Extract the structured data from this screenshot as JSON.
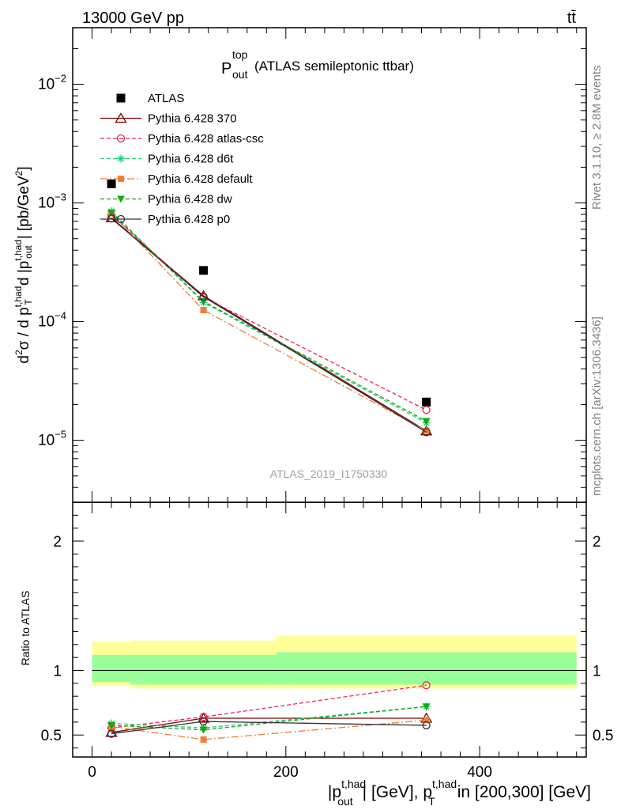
{
  "header": {
    "left": "13000 GeV pp",
    "right": "tt̄"
  },
  "side_labels": {
    "rivet": "Rivet 3.1.10, ≥ 2.8M events",
    "mcplots": "mcplots.cern.ch [arXiv:1306.3436]"
  },
  "main_title": {
    "symbol": "P",
    "sup": "top",
    "sub": "out",
    "rest": "(ATLAS semileptonic ttbar)"
  },
  "analysis_id": "ATLAS_2019_I1750330",
  "y_axis_main_label": "d²σ / d p_T^{t,had} d |p_out^{t,had}| [pb/GeV²]",
  "y_axis_ratio_label": "Ratio to ATLAS",
  "x_axis_label": "|p_out^{t,had}| [GeV], p_T^{t,had} in [200,300] [GeV]",
  "colors": {
    "atlas": "#000000",
    "p370": "#7f0000",
    "atlas_csc": "#ee2255",
    "d6t": "#22cc77",
    "default": "#f07f33",
    "dw": "#11aa11",
    "p0": "#333333",
    "band_outer": "#ffff99",
    "band_inner": "#99ff99"
  },
  "chart_data": [
    {
      "type": "line",
      "panel": "main",
      "yscale": "log",
      "xlim": [
        -20,
        510
      ],
      "ylim": [
        3e-06,
        0.03
      ],
      "x_ticks": [
        0,
        200,
        400
      ],
      "y_ticks": [
        "10^-5",
        "10^-4",
        "10^-3",
        "10^-2"
      ],
      "legend_position": "top-left",
      "x": [
        20,
        115,
        345
      ],
      "series": [
        {
          "name": "ATLAS",
          "style": "data",
          "values": [
            0.00145,
            0.00027,
            2.1e-05
          ]
        },
        {
          "name": "Pythia 6.428 370",
          "style": "solid",
          "marker": "triangle-open",
          "values": [
            0.00075,
            0.000165,
            1.2e-05
          ]
        },
        {
          "name": "Pythia 6.428 atlas-csc",
          "style": "dashed",
          "marker": "circle-open",
          "values": [
            0.00079,
            0.00016,
            1.8e-05
          ]
        },
        {
          "name": "Pythia 6.428 d6t",
          "style": "dashed",
          "marker": "asterisk",
          "values": [
            0.00085,
            0.000145,
            1.4e-05
          ]
        },
        {
          "name": "Pythia 6.428 default",
          "style": "dashdot",
          "marker": "square",
          "values": [
            0.00082,
            0.000125,
            1.2e-05
          ]
        },
        {
          "name": "Pythia 6.428 dw",
          "style": "dashed",
          "marker": "triangle-down",
          "values": [
            0.00083,
            0.000148,
            1.45e-05
          ]
        },
        {
          "name": "Pythia 6.428 p0",
          "style": "solid",
          "marker": "circle-open",
          "values": [
            0.00074,
            0.000162,
            1.17e-05
          ]
        }
      ]
    },
    {
      "type": "line",
      "panel": "ratio",
      "xlim": [
        -20,
        510
      ],
      "ylim": [
        0.33,
        2.3
      ],
      "x_ticks": [
        0,
        200,
        400
      ],
      "y_ticks": [
        0.5,
        1,
        2
      ],
      "reference_line": 1,
      "bands": {
        "bins": [
          [
            0,
            40
          ],
          [
            40,
            190
          ],
          [
            190,
            500
          ]
        ],
        "outer": [
          [
            0.88,
            1.22
          ],
          [
            0.86,
            1.23
          ],
          [
            0.86,
            1.27
          ]
        ],
        "inner": [
          [
            0.91,
            1.12
          ],
          [
            0.89,
            1.12
          ],
          [
            0.89,
            1.14
          ]
        ]
      },
      "x": [
        20,
        115,
        345
      ],
      "series": [
        {
          "name": "Pythia 6.428 370",
          "values": [
            0.52,
            0.63,
            0.63
          ]
        },
        {
          "name": "Pythia 6.428 atlas-csc",
          "values": [
            0.555,
            0.64,
            0.885
          ]
        },
        {
          "name": "Pythia 6.428 d6t",
          "values": [
            0.59,
            0.555,
            0.72
          ]
        },
        {
          "name": "Pythia 6.428 default",
          "values": [
            0.565,
            0.465,
            0.615
          ]
        },
        {
          "name": "Pythia 6.428 dw",
          "values": [
            0.575,
            0.54,
            0.72
          ]
        },
        {
          "name": "Pythia 6.428 p0",
          "values": [
            0.51,
            0.605,
            0.575
          ]
        }
      ]
    }
  ]
}
